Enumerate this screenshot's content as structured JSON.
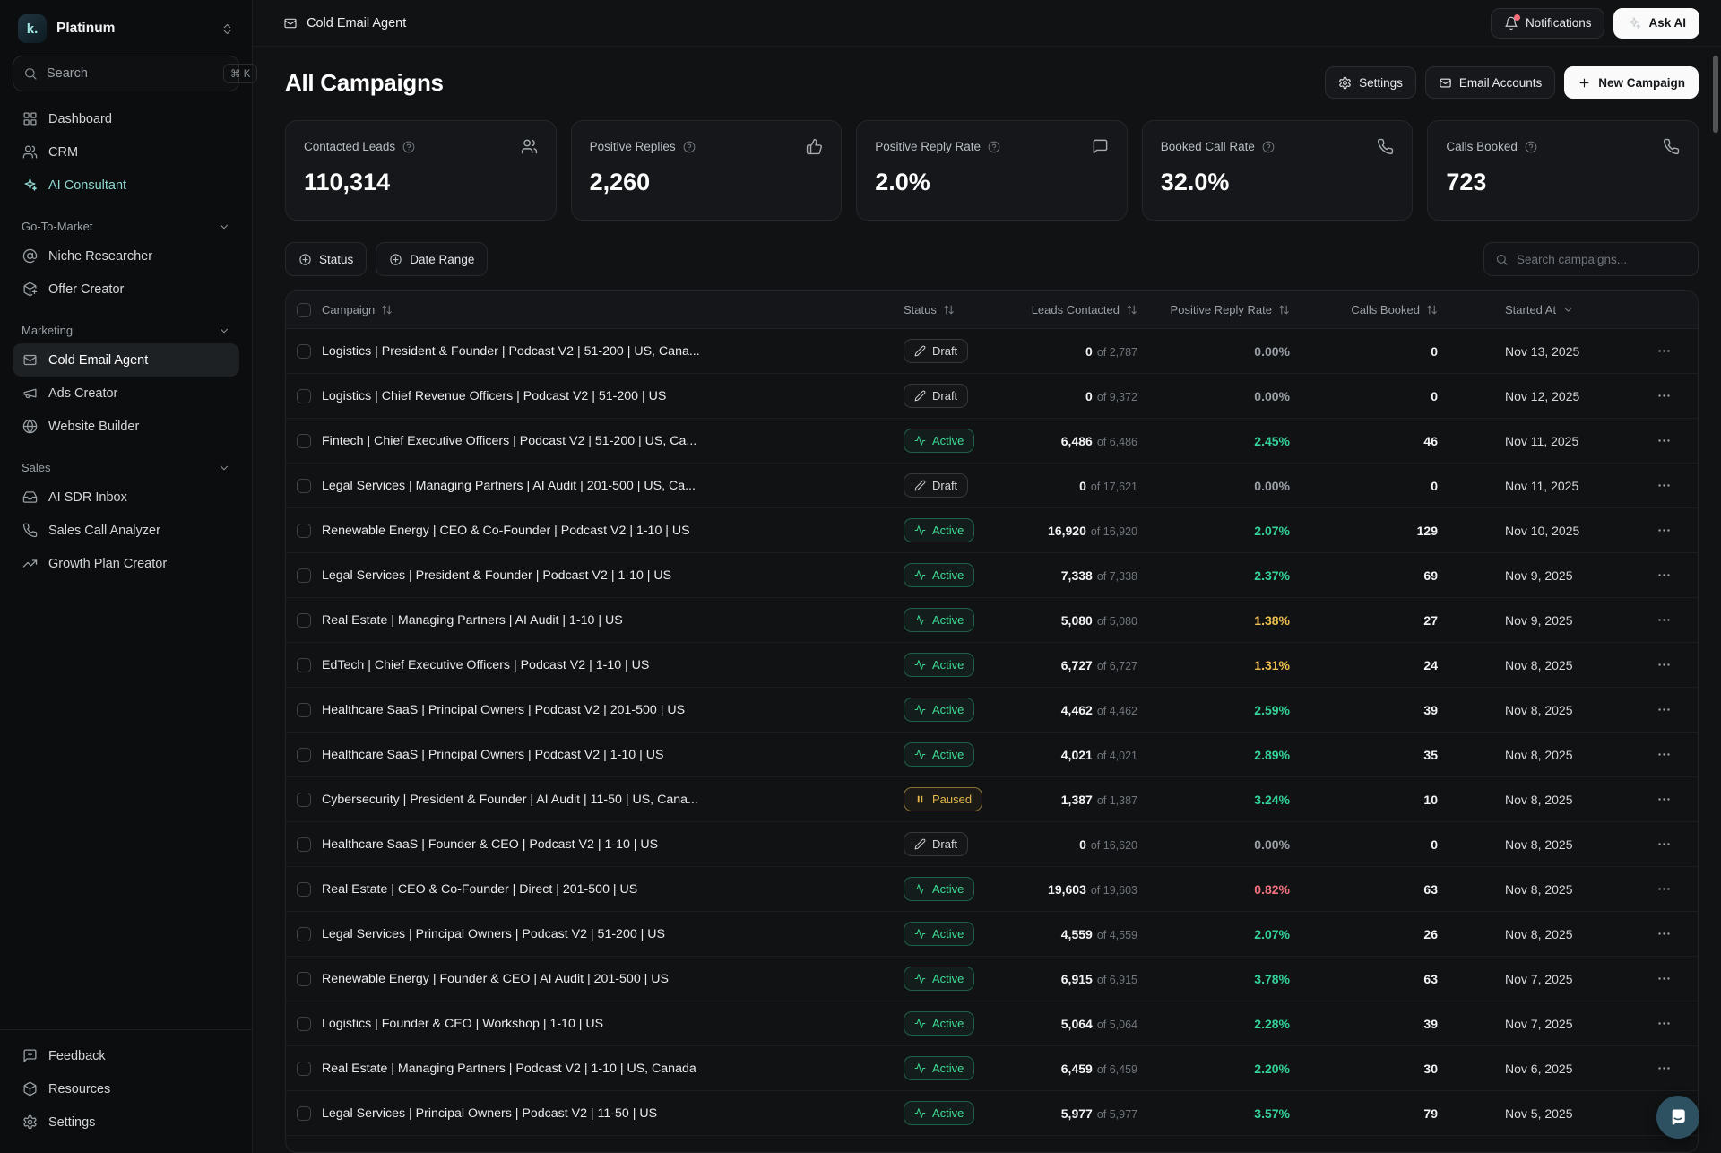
{
  "brand": {
    "name": "Platinum",
    "logo_text": "k."
  },
  "sidebar": {
    "search_placeholder": "Search",
    "search_shortcut": "⌘ K",
    "primary": [
      {
        "label": "Dashboard",
        "icon": "layout-grid"
      },
      {
        "label": "CRM",
        "icon": "users"
      },
      {
        "label": "AI Consultant",
        "icon": "sparkles",
        "accent": true
      }
    ],
    "sections": [
      {
        "label": "Go-To-Market",
        "items": [
          {
            "label": "Niche Researcher",
            "icon": "at-sign"
          },
          {
            "label": "Offer Creator",
            "icon": "package-plus"
          }
        ]
      },
      {
        "label": "Marketing",
        "items": [
          {
            "label": "Cold Email Agent",
            "icon": "mail",
            "active": true
          },
          {
            "label": "Ads Creator",
            "icon": "megaphone"
          },
          {
            "label": "Website Builder",
            "icon": "globe"
          }
        ]
      },
      {
        "label": "Sales",
        "items": [
          {
            "label": "AI SDR Inbox",
            "icon": "inbox"
          },
          {
            "label": "Sales Call Analyzer",
            "icon": "phone"
          },
          {
            "label": "Growth Plan Creator",
            "icon": "trending-up"
          }
        ]
      }
    ],
    "footer": [
      {
        "label": "Feedback",
        "icon": "message-square-plus"
      },
      {
        "label": "Resources",
        "icon": "box"
      },
      {
        "label": "Settings",
        "icon": "settings"
      }
    ]
  },
  "topbar": {
    "title": "Cold Email Agent",
    "notifications": "Notifications",
    "ask_ai": "Ask AI"
  },
  "page": {
    "title": "All Campaigns",
    "settings": "Settings",
    "email_accounts": "Email Accounts",
    "new_campaign": "New Campaign"
  },
  "stats": [
    {
      "label": "Contacted Leads",
      "value": "110,314",
      "icon": "users"
    },
    {
      "label": "Positive Replies",
      "value": "2,260",
      "icon": "thumbs-up"
    },
    {
      "label": "Positive Reply Rate",
      "value": "2.0%",
      "icon": "message-square"
    },
    {
      "label": "Booked Call Rate",
      "value": "32.0%",
      "icon": "phone"
    },
    {
      "label": "Calls Booked",
      "value": "723",
      "icon": "phone"
    }
  ],
  "filters": {
    "status": "Status",
    "date_range": "Date Range",
    "search_placeholder": "Search campaigns..."
  },
  "table": {
    "columns": {
      "campaign": "Campaign",
      "status": "Status",
      "leads": "Leads Contacted",
      "rate": "Positive Reply Rate",
      "calls": "Calls Booked",
      "started": "Started At"
    },
    "rows": [
      {
        "campaign": "Logistics | President & Founder | Podcast V2 | 51-200 | US, Cana...",
        "status": "Draft",
        "leads": "0",
        "leads_total": "of 2,787",
        "rate": "0.00%",
        "rate_color": "muted",
        "calls": "0",
        "started": "Nov 13, 2025"
      },
      {
        "campaign": "Logistics | Chief Revenue Officers | Podcast V2 | 51-200 | US",
        "status": "Draft",
        "leads": "0",
        "leads_total": "of 9,372",
        "rate": "0.00%",
        "rate_color": "muted",
        "calls": "0",
        "started": "Nov 12, 2025"
      },
      {
        "campaign": "Fintech | Chief Executive Officers | Podcast V2 | 51-200 | US, Ca...",
        "status": "Active",
        "leads": "6,486",
        "leads_total": "of 6,486",
        "rate": "2.45%",
        "rate_color": "green",
        "calls": "46",
        "started": "Nov 11, 2025"
      },
      {
        "campaign": "Legal Services | Managing Partners | AI Audit | 201-500 | US, Ca...",
        "status": "Draft",
        "leads": "0",
        "leads_total": "of 17,621",
        "rate": "0.00%",
        "rate_color": "muted",
        "calls": "0",
        "started": "Nov 11, 2025"
      },
      {
        "campaign": "Renewable Energy | CEO & Co-Founder | Podcast V2 | 1-10 | US",
        "status": "Active",
        "leads": "16,920",
        "leads_total": "of 16,920",
        "rate": "2.07%",
        "rate_color": "green",
        "calls": "129",
        "started": "Nov 10, 2025"
      },
      {
        "campaign": "Legal Services | President & Founder | Podcast V2 | 1-10 | US",
        "status": "Active",
        "leads": "7,338",
        "leads_total": "of 7,338",
        "rate": "2.37%",
        "rate_color": "green",
        "calls": "69",
        "started": "Nov 9, 2025"
      },
      {
        "campaign": "Real Estate | Managing Partners | AI Audit | 1-10 | US",
        "status": "Active",
        "leads": "5,080",
        "leads_total": "of 5,080",
        "rate": "1.38%",
        "rate_color": "amber",
        "calls": "27",
        "started": "Nov 9, 2025"
      },
      {
        "campaign": "EdTech | Chief Executive Officers | Podcast V2 | 1-10 | US",
        "status": "Active",
        "leads": "6,727",
        "leads_total": "of 6,727",
        "rate": "1.31%",
        "rate_color": "amber",
        "calls": "24",
        "started": "Nov 8, 2025"
      },
      {
        "campaign": "Healthcare SaaS | Principal Owners | Podcast V2 | 201-500 | US",
        "status": "Active",
        "leads": "4,462",
        "leads_total": "of 4,462",
        "rate": "2.59%",
        "rate_color": "green",
        "calls": "39",
        "started": "Nov 8, 2025"
      },
      {
        "campaign": "Healthcare SaaS | Principal Owners | Podcast V2 | 1-10 | US",
        "status": "Active",
        "leads": "4,021",
        "leads_total": "of 4,021",
        "rate": "2.89%",
        "rate_color": "green",
        "calls": "35",
        "started": "Nov 8, 2025"
      },
      {
        "campaign": "Cybersecurity | President & Founder | AI Audit | 11-50 | US, Cana...",
        "status": "Paused",
        "leads": "1,387",
        "leads_total": "of 1,387",
        "rate": "3.24%",
        "rate_color": "green",
        "calls": "10",
        "started": "Nov 8, 2025"
      },
      {
        "campaign": "Healthcare SaaS | Founder & CEO | Podcast V2 | 1-10 | US",
        "status": "Draft",
        "leads": "0",
        "leads_total": "of 16,620",
        "rate": "0.00%",
        "rate_color": "muted",
        "calls": "0",
        "started": "Nov 8, 2025"
      },
      {
        "campaign": "Real Estate | CEO & Co-Founder | Direct | 201-500 | US",
        "status": "Active",
        "leads": "19,603",
        "leads_total": "of 19,603",
        "rate": "0.82%",
        "rate_color": "red",
        "calls": "63",
        "started": "Nov 8, 2025"
      },
      {
        "campaign": "Legal Services | Principal Owners | Podcast V2 | 51-200 | US",
        "status": "Active",
        "leads": "4,559",
        "leads_total": "of 4,559",
        "rate": "2.07%",
        "rate_color": "green",
        "calls": "26",
        "started": "Nov 8, 2025"
      },
      {
        "campaign": "Renewable Energy | Founder & CEO | AI Audit | 201-500 | US",
        "status": "Active",
        "leads": "6,915",
        "leads_total": "of 6,915",
        "rate": "3.78%",
        "rate_color": "green",
        "calls": "63",
        "started": "Nov 7, 2025"
      },
      {
        "campaign": "Logistics | Founder & CEO | Workshop | 1-10 | US",
        "status": "Active",
        "leads": "5,064",
        "leads_total": "of 5,064",
        "rate": "2.28%",
        "rate_color": "green",
        "calls": "39",
        "started": "Nov 7, 2025"
      },
      {
        "campaign": "Real Estate | Managing Partners | Podcast V2 | 1-10 | US, Canada",
        "status": "Active",
        "leads": "6,459",
        "leads_total": "of 6,459",
        "rate": "2.20%",
        "rate_color": "green",
        "calls": "30",
        "started": "Nov 6, 2025"
      },
      {
        "campaign": "Legal Services | Principal Owners | Podcast V2 | 11-50 | US",
        "status": "Active",
        "leads": "5,977",
        "leads_total": "of 5,977",
        "rate": "3.57%",
        "rate_color": "green",
        "calls": "79",
        "started": "Nov 5, 2025"
      }
    ]
  },
  "colors": {
    "accent_teal": "#8fd8d3",
    "rate_green": "#34d399",
    "rate_amber": "#edbf4e",
    "rate_red": "#f2737f",
    "badge_active": "#3ddc97",
    "badge_paused": "#e5b94d",
    "notification_dot": "#f7707e",
    "chat_bubble": "#2e5161"
  }
}
